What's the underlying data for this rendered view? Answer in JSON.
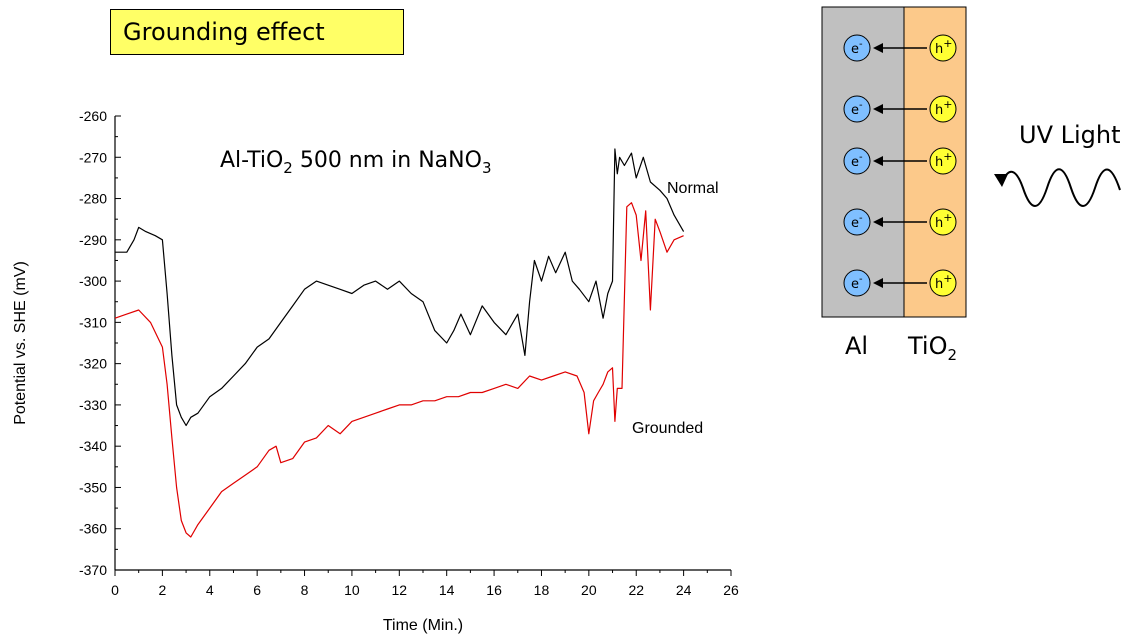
{
  "header": {
    "title": "Grounding effect"
  },
  "chart_data": {
    "type": "line",
    "annotation": {
      "prefix": "Al-TiO",
      "sub1": "2",
      "middle": " 500 nm in NaNO",
      "sub2": "3"
    },
    "xlabel": "Time (Min.)",
    "ylabel": "Potential vs. SHE (mV)",
    "xlim": [
      0,
      26
    ],
    "ylim": [
      -370,
      -260
    ],
    "xticks": [
      0,
      2,
      4,
      6,
      8,
      10,
      12,
      14,
      16,
      18,
      20,
      22,
      24,
      26
    ],
    "yticks": [
      -260,
      -270,
      -280,
      -290,
      -300,
      -310,
      -320,
      -330,
      -340,
      -350,
      -360,
      -370
    ],
    "grid": false,
    "series": [
      {
        "name": "Normal",
        "color": "#000000",
        "x": [
          0,
          0.5,
          0.8,
          1.0,
          1.3,
          1.7,
          2.0,
          2.2,
          2.4,
          2.6,
          2.8,
          3.0,
          3.2,
          3.5,
          4.0,
          4.5,
          5.0,
          5.5,
          6.0,
          6.5,
          7.0,
          7.5,
          8.0,
          8.5,
          9.0,
          9.5,
          10.0,
          10.5,
          11.0,
          11.5,
          12.0,
          12.5,
          13.0,
          13.5,
          14.0,
          14.3,
          14.6,
          15.0,
          15.5,
          16.0,
          16.5,
          17.0,
          17.3,
          17.5,
          17.7,
          18.0,
          18.3,
          18.6,
          19.0,
          19.3,
          19.6,
          20.0,
          20.3,
          20.6,
          20.8,
          21.0,
          21.1,
          21.2,
          21.3,
          21.5,
          21.8,
          22.0,
          22.3,
          22.6,
          23.0,
          23.3,
          23.6,
          24.0
        ],
        "y": [
          -293,
          -293,
          -290,
          -287,
          -288,
          -289,
          -290,
          -303,
          -318,
          -330,
          -333,
          -335,
          -333,
          -332,
          -328,
          -326,
          -323,
          -320,
          -316,
          -314,
          -310,
          -306,
          -302,
          -300,
          -301,
          -302,
          -303,
          -301,
          -300,
          -302,
          -300,
          -303,
          -305,
          -312,
          -315,
          -312,
          -308,
          -313,
          -306,
          -310,
          -313,
          -308,
          -318,
          -305,
          -295,
          -300,
          -294,
          -298,
          -293,
          -300,
          -302,
          -305,
          -300,
          -309,
          -303,
          -300,
          -268,
          -274,
          -270,
          -272,
          -269,
          -275,
          -270,
          -276,
          -278,
          -280,
          -284,
          -288
        ]
      },
      {
        "name": "Grounded",
        "color": "#e00000",
        "x": [
          0,
          0.5,
          1.0,
          1.5,
          2.0,
          2.2,
          2.4,
          2.6,
          2.8,
          3.0,
          3.2,
          3.5,
          4.0,
          4.5,
          5.0,
          5.5,
          6.0,
          6.5,
          6.8,
          7.0,
          7.5,
          8.0,
          8.5,
          9.0,
          9.5,
          10.0,
          10.5,
          11.0,
          11.5,
          12.0,
          12.5,
          13.0,
          13.5,
          14.0,
          14.5,
          15.0,
          15.5,
          16.0,
          16.5,
          17.0,
          17.5,
          18.0,
          18.5,
          19.0,
          19.5,
          19.8,
          20.0,
          20.2,
          20.4,
          20.6,
          20.8,
          21.0,
          21.1,
          21.2,
          21.4,
          21.6,
          21.8,
          22.0,
          22.2,
          22.4,
          22.6,
          22.8,
          23.0,
          23.3,
          23.6,
          24.0
        ],
        "y": [
          -309,
          -308,
          -307,
          -310,
          -316,
          -325,
          -338,
          -350,
          -358,
          -361,
          -362,
          -359,
          -355,
          -351,
          -349,
          -347,
          -345,
          -341,
          -340,
          -344,
          -343,
          -339,
          -338,
          -335,
          -337,
          -334,
          -333,
          -332,
          -331,
          -330,
          -330,
          -329,
          -329,
          -328,
          -328,
          -327,
          -327,
          -326,
          -325,
          -326,
          -323,
          -324,
          -323,
          -322,
          -323,
          -327,
          -337,
          -329,
          -327,
          -325,
          -322,
          -321,
          -334,
          -326,
          -326,
          -282,
          -281,
          -284,
          -295,
          -283,
          -307,
          -285,
          -288,
          -293,
          -290,
          -289
        ]
      }
    ]
  },
  "diagram": {
    "electron": {
      "base": "e",
      "sup": "-"
    },
    "hole": {
      "base": "h",
      "sup": "+"
    },
    "rows": 5,
    "label_al": "Al",
    "label_tio2": {
      "base": "TiO",
      "sub": "2"
    },
    "uv_label": "UV Light",
    "colors": {
      "al": "#c0c0c0",
      "tio2": "#fcc98a",
      "electron": "#7fbfff",
      "hole": "#ffff33"
    }
  }
}
